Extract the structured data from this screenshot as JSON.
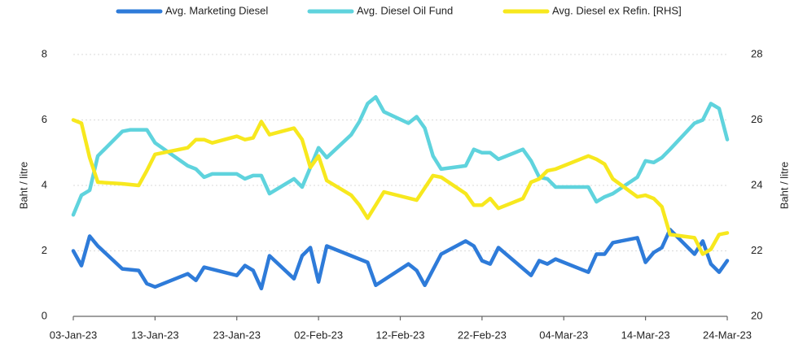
{
  "chart_data": {
    "type": "line",
    "xlim": [
      "2023-01-03",
      "2023-03-24"
    ],
    "xticks": [
      {
        "value": "2023-01-03",
        "label": "03-Jan-23"
      },
      {
        "value": "2023-01-13",
        "label": "13-Jan-23"
      },
      {
        "value": "2023-01-23",
        "label": "23-Jan-23"
      },
      {
        "value": "2023-02-02",
        "label": "02-Feb-23"
      },
      {
        "value": "2023-02-12",
        "label": "12-Feb-23"
      },
      {
        "value": "2023-02-22",
        "label": "22-Feb-23"
      },
      {
        "value": "2023-03-04",
        "label": "04-Mar-23"
      },
      {
        "value": "2023-03-14",
        "label": "14-Mar-23"
      },
      {
        "value": "2023-03-24",
        "label": "24-Mar-23"
      }
    ],
    "ylabel": "Baht / litre",
    "y2label": "Baht / litre",
    "ylim": [
      0,
      8
    ],
    "yticks": [
      0,
      2,
      4,
      6,
      8
    ],
    "y2lim": [
      20,
      28
    ],
    "y2ticks": [
      20,
      22,
      24,
      26,
      28
    ],
    "grid": true,
    "legend": "top",
    "series": [
      {
        "name": "Avg. Marketing Diesel",
        "color": "#2e7bd9",
        "x": [
          "2023-01-03",
          "2023-01-04",
          "2023-01-05",
          "2023-01-06",
          "2023-01-09",
          "2023-01-11",
          "2023-01-12",
          "2023-01-13",
          "2023-01-17",
          "2023-01-18",
          "2023-01-19",
          "2023-01-23",
          "2023-01-24",
          "2023-01-25",
          "2023-01-26",
          "2023-01-27",
          "2023-01-30",
          "2023-01-31",
          "2023-02-01",
          "2023-02-02",
          "2023-02-03",
          "2023-02-08",
          "2023-02-09",
          "2023-02-13",
          "2023-02-14",
          "2023-02-15",
          "2023-02-17",
          "2023-02-20",
          "2023-02-21",
          "2023-02-22",
          "2023-02-23",
          "2023-02-24",
          "2023-02-28",
          "2023-03-01",
          "2023-03-02",
          "2023-03-03",
          "2023-03-07",
          "2023-03-08",
          "2023-03-09",
          "2023-03-10",
          "2023-03-13",
          "2023-03-14",
          "2023-03-15",
          "2023-03-16",
          "2023-03-17",
          "2023-03-20",
          "2023-03-21",
          "2023-03-22",
          "2023-03-23",
          "2023-03-24"
        ],
        "values": [
          2.0,
          1.55,
          2.45,
          2.15,
          1.45,
          1.4,
          1.0,
          0.9,
          1.3,
          1.1,
          1.5,
          1.25,
          1.55,
          1.4,
          0.85,
          1.85,
          1.15,
          1.85,
          2.1,
          1.05,
          2.15,
          1.65,
          0.95,
          1.6,
          1.4,
          0.95,
          1.9,
          2.3,
          2.15,
          1.7,
          1.6,
          2.1,
          1.25,
          1.7,
          1.6,
          1.75,
          1.35,
          1.9,
          1.9,
          2.25,
          2.4,
          1.65,
          1.95,
          2.1,
          2.65,
          1.9,
          2.3,
          1.6,
          1.35,
          1.7
        ]
      },
      {
        "name": "Avg. Diesel Oil Fund",
        "color": "#5fd3dd",
        "x": [
          "2023-01-03",
          "2023-01-04",
          "2023-01-05",
          "2023-01-06",
          "2023-01-09",
          "2023-01-10",
          "2023-01-12",
          "2023-01-13",
          "2023-01-17",
          "2023-01-18",
          "2023-01-19",
          "2023-01-20",
          "2023-01-23",
          "2023-01-24",
          "2023-01-25",
          "2023-01-26",
          "2023-01-27",
          "2023-01-30",
          "2023-01-31",
          "2023-02-01",
          "2023-02-02",
          "2023-02-03",
          "2023-02-06",
          "2023-02-07",
          "2023-02-08",
          "2023-02-09",
          "2023-02-10",
          "2023-02-13",
          "2023-02-14",
          "2023-02-15",
          "2023-02-16",
          "2023-02-17",
          "2023-02-20",
          "2023-02-21",
          "2023-02-22",
          "2023-02-23",
          "2023-02-24",
          "2023-02-27",
          "2023-02-28",
          "2023-03-01",
          "2023-03-02",
          "2023-03-03",
          "2023-03-07",
          "2023-03-08",
          "2023-03-09",
          "2023-03-10",
          "2023-03-13",
          "2023-03-14",
          "2023-03-15",
          "2023-03-16",
          "2023-03-17",
          "2023-03-20",
          "2023-03-21",
          "2023-03-22",
          "2023-03-23",
          "2023-03-24"
        ],
        "values": [
          3.1,
          3.7,
          3.85,
          4.9,
          5.65,
          5.7,
          5.7,
          5.3,
          4.6,
          4.5,
          4.25,
          4.35,
          4.35,
          4.2,
          4.3,
          4.3,
          3.75,
          4.2,
          3.95,
          4.55,
          5.15,
          4.85,
          5.55,
          5.95,
          6.5,
          6.7,
          6.25,
          5.9,
          6.1,
          5.75,
          4.9,
          4.5,
          4.6,
          5.1,
          5.0,
          5.0,
          4.8,
          5.1,
          4.75,
          4.25,
          4.2,
          3.95,
          3.95,
          3.5,
          3.65,
          3.75,
          4.25,
          4.75,
          4.7,
          4.85,
          5.1,
          5.9,
          6.0,
          6.5,
          6.35,
          5.4
        ]
      },
      {
        "name": "Avg. Diesel ex Refin. [RHS]",
        "color": "#f7e81e",
        "axis": "y2",
        "x": [
          "2023-01-03",
          "2023-01-04",
          "2023-01-05",
          "2023-01-06",
          "2023-01-09",
          "2023-01-11",
          "2023-01-12",
          "2023-01-13",
          "2023-01-17",
          "2023-01-18",
          "2023-01-19",
          "2023-01-20",
          "2023-01-23",
          "2023-01-24",
          "2023-01-25",
          "2023-01-26",
          "2023-01-27",
          "2023-01-30",
          "2023-01-31",
          "2023-02-01",
          "2023-02-02",
          "2023-02-03",
          "2023-02-06",
          "2023-02-07",
          "2023-02-08",
          "2023-02-10",
          "2023-02-14",
          "2023-02-16",
          "2023-02-17",
          "2023-02-20",
          "2023-02-21",
          "2023-02-22",
          "2023-02-23",
          "2023-02-24",
          "2023-02-27",
          "2023-02-28",
          "2023-03-01",
          "2023-03-02",
          "2023-03-03",
          "2023-03-07",
          "2023-03-08",
          "2023-03-09",
          "2023-03-10",
          "2023-03-13",
          "2023-03-14",
          "2023-03-15",
          "2023-03-16",
          "2023-03-17",
          "2023-03-20",
          "2023-03-21",
          "2023-03-22",
          "2023-03-23",
          "2023-03-24"
        ],
        "values": [
          26.0,
          25.9,
          24.85,
          24.1,
          24.05,
          24.0,
          24.45,
          24.95,
          25.15,
          25.4,
          25.4,
          25.3,
          25.5,
          25.4,
          25.45,
          25.95,
          25.55,
          25.75,
          25.4,
          24.55,
          24.9,
          24.15,
          23.7,
          23.4,
          23.0,
          23.8,
          23.55,
          24.3,
          24.25,
          23.75,
          23.4,
          23.4,
          23.6,
          23.3,
          23.6,
          24.1,
          24.2,
          24.45,
          24.5,
          24.9,
          24.8,
          24.65,
          24.2,
          23.65,
          23.7,
          23.6,
          23.35,
          22.5,
          22.4,
          21.9,
          22.05,
          22.5,
          22.55
        ]
      }
    ]
  }
}
